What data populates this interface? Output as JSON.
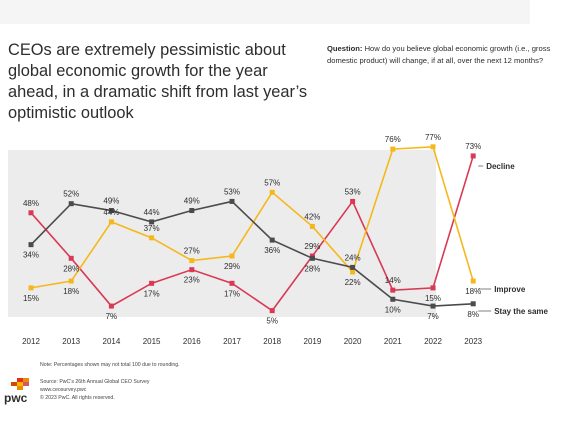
{
  "header": {
    "title": "CEOs are extremely pessimistic about global economic growth for the year ahead, in a dramatic shift from last year’s optimistic outlook",
    "question_label": "Question:",
    "question_text": "How do you believe global economic growth (i.e., gross domestic product) will change, if at all, over the next 12 months?"
  },
  "chart_data": {
    "type": "line",
    "x": [
      2012,
      2013,
      2014,
      2015,
      2016,
      2017,
      2018,
      2019,
      2020,
      2021,
      2022,
      2023
    ],
    "ylim": [
      0,
      80
    ],
    "grid": false,
    "series": [
      {
        "name": "Decline",
        "color": "#d93954",
        "marker": "square",
        "values": [
          48,
          28,
          7,
          17,
          23,
          17,
          5,
          29,
          53,
          14,
          15,
          73
        ]
      },
      {
        "name": "Improve",
        "color": "#f5b81c",
        "marker": "square",
        "values": [
          15,
          18,
          44,
          37,
          27,
          29,
          57,
          42,
          22,
          76,
          77,
          18
        ]
      },
      {
        "name": "Stay the same",
        "color": "#4b4b4b",
        "marker": "square",
        "values": [
          34,
          52,
          49,
          44,
          49,
          53,
          36,
          28,
          24,
          10,
          7,
          8
        ]
      }
    ],
    "value_suffix": "%"
  },
  "footer": {
    "note": "Note: Percentages shown may not total 100 due to rounding.",
    "source": "Source: PwC’s 26th Annual Global CEO Survey",
    "url": "www.ceosurvey.pwc",
    "copyright": "© 2023 PwC. All rights reserved.",
    "logo_text": "pwc"
  }
}
